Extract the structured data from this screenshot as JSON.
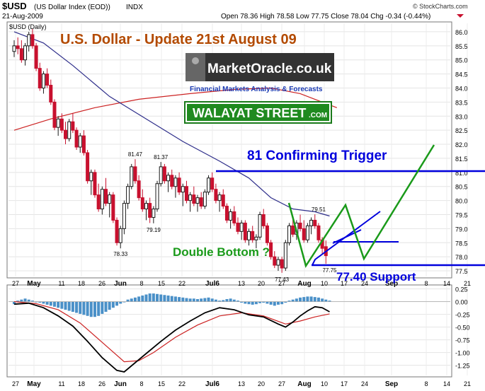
{
  "header": {
    "symbol": "$USD",
    "name": "(US Dollar Index (EOD))",
    "exchange": "INDX",
    "date": "21-Aug-2009",
    "ohlc": "Open 78.36  High 78.58  Low 77.75  Close 78.04  Chg -0.34 (-0.44%)",
    "source": "© StockCharts.com",
    "panel_label": "$USD (Daily)"
  },
  "overlay": {
    "title": "U.S. Dollar - Update 21st August 09",
    "logo_main": "MarketOracle.co.uk",
    "logo_sub": "Financial Markets Analysis & Forecasts",
    "badge": "WALAYAT STREET",
    "badge_suffix": ".COM",
    "trigger_label": "81 Confirming Trigger",
    "double_bottom_label": "Double Bottom ?",
    "support_label": "77.40 Support"
  },
  "colors": {
    "up_candle": "#1a1a1a",
    "down_candle": "#c8102e",
    "ma_short": "#2d2d8a",
    "ma_long": "#cc2222",
    "annotation_blue": "#0000dd",
    "annotation_green": "#1a9a1a",
    "title_color": "#b34a00",
    "histogram": "#4a90c8"
  },
  "chart_data": {
    "type": "candlestick",
    "price_axis": {
      "range": [
        77.3,
        86.3
      ],
      "ticks": [
        "86.0",
        "85.5",
        "85.0",
        "84.5",
        "84.0",
        "83.5",
        "83.0",
        "82.5",
        "82.0",
        "81.5",
        "81.0",
        "80.5",
        "80.0",
        "79.5",
        "79.0",
        "78.5",
        "78.0",
        "77.5"
      ]
    },
    "x_labels": [
      "27",
      "May",
      "11",
      "18",
      "26",
      "Jun",
      "8",
      "15",
      "22",
      "Jul6",
      "13",
      "20",
      "27",
      "Aug",
      "10",
      "17",
      "24",
      "Sep",
      "8",
      "14",
      "21"
    ],
    "price_labels": [
      {
        "text": "81.47",
        "value": 81.47,
        "day": 33
      },
      {
        "text": "81.37",
        "value": 81.37,
        "day": 40
      },
      {
        "text": "79.19",
        "value": 79.19,
        "day": 38
      },
      {
        "text": "78.33",
        "value": 78.33,
        "day": 29
      },
      {
        "text": "79.51",
        "value": 79.51,
        "day": 83
      },
      {
        "text": "77.43",
        "value": 77.43,
        "day": 73
      },
      {
        "text": "77.75",
        "value": 77.75,
        "day": 86
      }
    ],
    "candles": [
      [
        85.3,
        85.7,
        85.1,
        85.5
      ],
      [
        85.5,
        85.8,
        85.2,
        85.4
      ],
      [
        85.4,
        85.7,
        84.9,
        85.0
      ],
      [
        85.0,
        85.6,
        84.8,
        85.5
      ],
      [
        85.5,
        86.0,
        85.3,
        85.9
      ],
      [
        85.9,
        86.1,
        85.4,
        85.5
      ],
      [
        85.5,
        85.6,
        84.6,
        84.7
      ],
      [
        84.7,
        84.9,
        83.9,
        84.0
      ],
      [
        84.0,
        84.6,
        83.8,
        84.5
      ],
      [
        84.5,
        84.7,
        84.0,
        84.1
      ],
      [
        84.1,
        84.3,
        83.4,
        83.5
      ],
      [
        83.5,
        83.6,
        82.5,
        82.6
      ],
      [
        82.6,
        83.0,
        82.3,
        82.9
      ],
      [
        82.9,
        83.1,
        82.4,
        82.5
      ],
      [
        82.5,
        82.8,
        82.0,
        82.2
      ],
      [
        82.2,
        82.9,
        82.1,
        82.8
      ],
      [
        82.8,
        83.1,
        82.4,
        82.5
      ],
      [
        82.5,
        82.6,
        81.8,
        81.9
      ],
      [
        81.9,
        82.4,
        81.7,
        82.3
      ],
      [
        82.3,
        82.5,
        81.6,
        81.7
      ],
      [
        81.7,
        81.8,
        80.6,
        80.7
      ],
      [
        80.7,
        81.1,
        80.2,
        81.0
      ],
      [
        81.0,
        81.1,
        80.1,
        80.2
      ],
      [
        80.2,
        80.6,
        79.6,
        79.7
      ],
      [
        79.7,
        80.5,
        79.5,
        80.4
      ],
      [
        80.4,
        80.8,
        79.8,
        79.9
      ],
      [
        79.9,
        80.3,
        79.4,
        80.2
      ],
      [
        80.2,
        80.3,
        79.2,
        79.3
      ],
      [
        79.3,
        79.4,
        78.4,
        78.5
      ],
      [
        78.5,
        79.1,
        78.3,
        79.0
      ],
      [
        79.0,
        80.0,
        78.8,
        79.9
      ],
      [
        79.9,
        80.6,
        79.7,
        80.5
      ],
      [
        80.5,
        81.3,
        80.4,
        81.2
      ],
      [
        81.2,
        81.47,
        80.6,
        80.7
      ],
      [
        80.7,
        80.9,
        80.0,
        80.1
      ],
      [
        80.1,
        80.4,
        79.6,
        79.7
      ],
      [
        79.7,
        80.0,
        79.3,
        79.9
      ],
      [
        79.9,
        80.1,
        79.2,
        79.4
      ],
      [
        79.4,
        79.8,
        79.19,
        79.7
      ],
      [
        79.7,
        80.7,
        79.6,
        80.6
      ],
      [
        80.6,
        81.37,
        80.5,
        81.2
      ],
      [
        81.2,
        81.3,
        80.6,
        80.7
      ],
      [
        80.7,
        81.0,
        80.3,
        80.9
      ],
      [
        80.9,
        81.1,
        80.4,
        80.5
      ],
      [
        80.5,
        80.9,
        80.1,
        80.8
      ],
      [
        80.8,
        81.0,
        80.2,
        80.3
      ],
      [
        80.3,
        80.6,
        79.8,
        80.5
      ],
      [
        80.5,
        80.7,
        79.9,
        80.0
      ],
      [
        80.0,
        80.3,
        79.6,
        80.2
      ],
      [
        80.2,
        80.5,
        79.8,
        79.9
      ],
      [
        79.9,
        80.2,
        79.6,
        80.1
      ],
      [
        80.1,
        80.3,
        79.7,
        79.8
      ],
      [
        79.8,
        80.4,
        79.7,
        80.3
      ],
      [
        80.3,
        80.9,
        80.2,
        80.8
      ],
      [
        80.8,
        81.0,
        80.3,
        80.4
      ],
      [
        80.4,
        80.6,
        79.9,
        80.0
      ],
      [
        80.0,
        80.3,
        79.6,
        80.2
      ],
      [
        80.2,
        80.4,
        79.7,
        79.8
      ],
      [
        79.8,
        79.9,
        79.2,
        79.3
      ],
      [
        79.3,
        79.7,
        79.0,
        79.6
      ],
      [
        79.6,
        79.8,
        79.1,
        79.2
      ],
      [
        79.2,
        79.4,
        78.8,
        78.9
      ],
      [
        78.9,
        79.3,
        78.6,
        79.2
      ],
      [
        79.2,
        79.3,
        78.5,
        78.6
      ],
      [
        78.6,
        79.0,
        78.4,
        78.9
      ],
      [
        78.9,
        79.1,
        78.5,
        78.6
      ],
      [
        78.6,
        78.8,
        78.3,
        78.7
      ],
      [
        78.7,
        79.6,
        78.6,
        79.5
      ],
      [
        79.5,
        79.7,
        79.0,
        79.1
      ],
      [
        79.1,
        79.2,
        78.4,
        78.5
      ],
      [
        78.5,
        78.6,
        77.9,
        78.0
      ],
      [
        78.0,
        78.2,
        77.6,
        77.7
      ],
      [
        77.7,
        78.0,
        77.5,
        77.9
      ],
      [
        77.9,
        78.0,
        77.43,
        77.6
      ],
      [
        77.6,
        78.6,
        77.5,
        78.5
      ],
      [
        78.5,
        79.2,
        78.4,
        79.1
      ],
      [
        79.1,
        79.4,
        78.7,
        78.8
      ],
      [
        78.8,
        79.3,
        78.6,
        79.2
      ],
      [
        79.2,
        79.5,
        78.9,
        79.0
      ],
      [
        79.0,
        79.3,
        78.5,
        78.6
      ],
      [
        78.6,
        79.2,
        78.5,
        79.1
      ],
      [
        79.1,
        79.4,
        78.8,
        79.3
      ],
      [
        79.3,
        79.51,
        79.0,
        79.1
      ],
      [
        79.1,
        79.2,
        78.5,
        78.6
      ],
      [
        78.6,
        78.7,
        78.1,
        78.3
      ],
      [
        78.36,
        78.58,
        77.75,
        78.04
      ]
    ],
    "ma_short": {
      "points": [
        [
          0,
          86.0
        ],
        [
          8,
          85.6
        ],
        [
          16,
          84.8
        ],
        [
          26,
          83.7
        ],
        [
          36,
          82.9
        ],
        [
          46,
          82.1
        ],
        [
          56,
          81.4
        ],
        [
          64,
          80.8
        ],
        [
          70,
          80.1
        ],
        [
          76,
          79.7
        ],
        [
          82,
          79.6
        ],
        [
          86,
          79.45
        ]
      ]
    },
    "ma_long": {
      "points": [
        [
          0,
          82.5
        ],
        [
          10,
          82.9
        ],
        [
          22,
          83.3
        ],
        [
          34,
          83.6
        ],
        [
          48,
          83.8
        ],
        [
          60,
          83.95
        ],
        [
          70,
          84.0
        ],
        [
          78,
          83.8
        ],
        [
          84,
          83.5
        ],
        [
          88,
          83.3
        ]
      ]
    },
    "indicator_axis": {
      "range": [
        -1.45,
        0.3
      ],
      "ticks": [
        "0.25",
        "0.00",
        "-0.25",
        "-0.50",
        "-0.75",
        "-1.00",
        "-1.25"
      ]
    },
    "macd_line": {
      "points": [
        [
          0,
          -0.05
        ],
        [
          4,
          -0.03
        ],
        [
          8,
          -0.12
        ],
        [
          12,
          -0.28
        ],
        [
          16,
          -0.48
        ],
        [
          20,
          -0.78
        ],
        [
          24,
          -1.1
        ],
        [
          28,
          -1.35
        ],
        [
          30,
          -1.38
        ],
        [
          33,
          -1.2
        ],
        [
          36,
          -1.02
        ],
        [
          40,
          -0.78
        ],
        [
          44,
          -0.56
        ],
        [
          48,
          -0.38
        ],
        [
          52,
          -0.22
        ],
        [
          56,
          -0.12
        ],
        [
          60,
          -0.16
        ],
        [
          64,
          -0.26
        ],
        [
          68,
          -0.3
        ],
        [
          72,
          -0.44
        ],
        [
          74,
          -0.5
        ],
        [
          76,
          -0.4
        ],
        [
          78,
          -0.28
        ],
        [
          80,
          -0.18
        ],
        [
          82,
          -0.1
        ],
        [
          84,
          -0.12
        ],
        [
          86,
          -0.2
        ]
      ]
    },
    "signal_line": {
      "points": [
        [
          0,
          0.0
        ],
        [
          6,
          -0.04
        ],
        [
          12,
          -0.16
        ],
        [
          18,
          -0.42
        ],
        [
          24,
          -0.8
        ],
        [
          30,
          -1.18
        ],
        [
          34,
          -1.16
        ],
        [
          38,
          -1.0
        ],
        [
          44,
          -0.7
        ],
        [
          50,
          -0.46
        ],
        [
          56,
          -0.28
        ],
        [
          62,
          -0.22
        ],
        [
          68,
          -0.28
        ],
        [
          74,
          -0.44
        ],
        [
          78,
          -0.38
        ],
        [
          82,
          -0.3
        ],
        [
          86,
          -0.24
        ]
      ]
    },
    "histogram": [
      -0.05,
      0.02,
      0.04,
      0.06,
      0.04,
      0.02,
      0.0,
      -0.02,
      -0.04,
      -0.06,
      -0.08,
      -0.1,
      -0.12,
      -0.14,
      -0.16,
      -0.18,
      -0.2,
      -0.22,
      -0.24,
      -0.26,
      -0.28,
      -0.3,
      -0.3,
      -0.28,
      -0.24,
      -0.2,
      -0.16,
      -0.12,
      -0.08,
      -0.04,
      0.0,
      0.04,
      0.06,
      0.08,
      0.1,
      0.12,
      0.14,
      0.16,
      0.16,
      0.15,
      0.14,
      0.13,
      0.12,
      0.11,
      0.1,
      0.09,
      0.08,
      0.07,
      0.06,
      0.06,
      0.05,
      0.06,
      0.07,
      0.08,
      0.06,
      0.04,
      0.02,
      0.03,
      0.05,
      0.06,
      0.04,
      0.02,
      -0.02,
      -0.04,
      -0.05,
      -0.06,
      -0.05,
      -0.03,
      -0.02,
      -0.04,
      -0.06,
      -0.08,
      -0.06,
      -0.05,
      -0.02,
      0.02,
      0.04,
      0.06,
      0.08,
      0.09,
      0.1,
      0.1,
      0.09,
      0.08,
      0.06,
      0.04,
      0.02
    ]
  }
}
